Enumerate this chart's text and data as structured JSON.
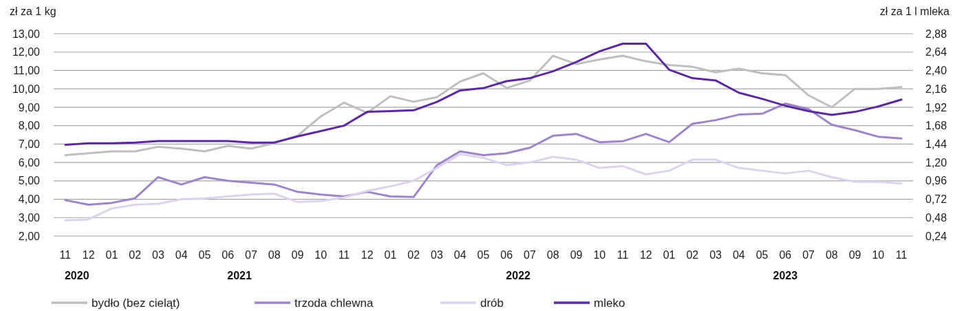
{
  "chart_data": {
    "type": "line",
    "ylabel": "zł za 1 kg",
    "y2label": "zł za 1 l mleka",
    "categories": [
      "11",
      "12",
      "01",
      "02",
      "03",
      "04",
      "05",
      "06",
      "07",
      "08",
      "09",
      "10",
      "11",
      "12",
      "01",
      "02",
      "03",
      "04",
      "05",
      "06",
      "07",
      "08",
      "09",
      "10",
      "11",
      "12",
      "01",
      "02",
      "03",
      "04",
      "05",
      "06",
      "07",
      "08",
      "09",
      "10",
      "11"
    ],
    "annotations": [
      "2020",
      "2021",
      "2022",
      "2023"
    ],
    "ylim": [
      2,
      13
    ],
    "yticks": [
      {
        "value": 2,
        "label": "2,00"
      },
      {
        "value": 3,
        "label": "3,00"
      },
      {
        "value": 4,
        "label": "4,00"
      },
      {
        "value": 5,
        "label": "5,00"
      },
      {
        "value": 6,
        "label": "6,00"
      },
      {
        "value": 7,
        "label": "7,00"
      },
      {
        "value": 8,
        "label": "8,00"
      },
      {
        "value": 9,
        "label": "9,00"
      },
      {
        "value": 10,
        "label": "10,00"
      },
      {
        "value": 11,
        "label": "11,00"
      },
      {
        "value": 12,
        "label": "12,00"
      },
      {
        "value": 13,
        "label": "13,00"
      }
    ],
    "y2lim": [
      0.24,
      2.88
    ],
    "y2ticks": [
      {
        "value": 0.24,
        "label": "0,24"
      },
      {
        "value": 0.48,
        "label": "0,48"
      },
      {
        "value": 0.72,
        "label": "0,72"
      },
      {
        "value": 0.96,
        "label": "0,96"
      },
      {
        "value": 1.2,
        "label": "1,20"
      },
      {
        "value": 1.44,
        "label": "1,44"
      },
      {
        "value": 1.68,
        "label": "1,68"
      },
      {
        "value": 1.92,
        "label": "1,92"
      },
      {
        "value": 2.16,
        "label": "2,16"
      },
      {
        "value": 2.4,
        "label": "2,40"
      },
      {
        "value": 2.64,
        "label": "2,64"
      },
      {
        "value": 2.88,
        "label": "2,88"
      }
    ],
    "grid": "y",
    "legend": "bottom",
    "line_style": "solid",
    "series": [
      {
        "name": "bydło (bez cieląt)",
        "color": "#bfbfbf",
        "values": [
          6.4,
          6.5,
          6.6,
          6.6,
          6.85,
          6.75,
          6.6,
          6.9,
          6.75,
          7.05,
          7.45,
          8.5,
          9.25,
          8.7,
          9.6,
          9.3,
          9.55,
          10.4,
          10.85,
          10.05,
          10.45,
          11.8,
          11.35,
          11.6,
          11.8,
          11.5,
          11.3,
          11.2,
          10.9,
          11.1,
          10.85,
          10.75,
          9.65,
          9.0,
          10.0,
          10.0,
          10.1
        ]
      },
      {
        "name": "trzoda chlewna",
        "color": "#9e85c8",
        "values": [
          3.95,
          3.7,
          3.8,
          4.05,
          5.2,
          4.8,
          5.2,
          5.0,
          4.9,
          4.8,
          4.4,
          4.25,
          4.15,
          4.4,
          4.15,
          4.12,
          5.85,
          6.6,
          6.4,
          6.5,
          6.8,
          7.45,
          7.55,
          7.1,
          7.15,
          7.55,
          7.1,
          8.1,
          8.3,
          8.6,
          8.65,
          9.2,
          8.9,
          8.05,
          7.75,
          7.4,
          7.3
        ]
      },
      {
        "name": "drób",
        "color": "#ddd3ec",
        "values": [
          2.85,
          2.9,
          3.5,
          3.7,
          3.75,
          4.0,
          4.05,
          4.15,
          4.25,
          4.3,
          3.85,
          3.9,
          4.1,
          4.45,
          4.7,
          5.0,
          5.7,
          6.45,
          6.25,
          5.85,
          6.0,
          6.3,
          6.15,
          5.7,
          5.8,
          5.35,
          5.55,
          6.15,
          6.15,
          5.7,
          5.55,
          5.4,
          5.55,
          5.2,
          4.95,
          4.95,
          4.85
        ]
      },
      {
        "name": "mleko",
        "color": "#5b2a9e",
        "axis": "y2",
        "values": [
          1.43,
          1.45,
          1.45,
          1.46,
          1.48,
          1.48,
          1.48,
          1.48,
          1.46,
          1.46,
          1.54,
          1.61,
          1.68,
          1.86,
          1.87,
          1.88,
          1.99,
          2.14,
          2.17,
          2.26,
          2.3,
          2.39,
          2.51,
          2.65,
          2.75,
          2.75,
          2.41,
          2.3,
          2.27,
          2.11,
          2.03,
          1.94,
          1.87,
          1.82,
          1.86,
          1.93,
          2.02
        ]
      }
    ]
  }
}
